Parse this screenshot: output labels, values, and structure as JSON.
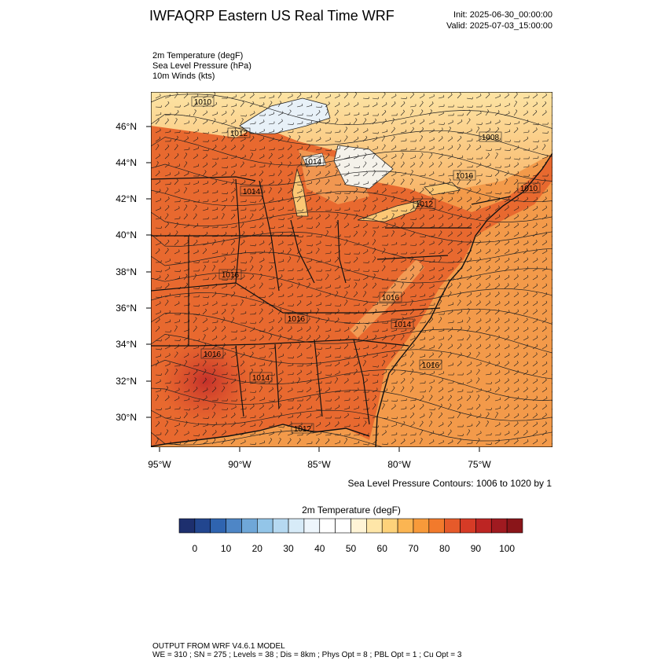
{
  "title": "IWFAQRP Eastern US Real Time WRF",
  "init": "Init: 2025-06-30_00:00:00",
  "valid": "Valid: 2025-07-03_15:00:00",
  "fields": [
    "2m Temperature   (degF)",
    "Sea Level Pressure   (hPa)",
    "10m Winds   (kts)"
  ],
  "map": {
    "lat_labels": [
      "46°N",
      "44°N",
      "42°N",
      "40°N",
      "38°N",
      "36°N",
      "34°N",
      "32°N",
      "30°N"
    ],
    "lon_labels": [
      "95°W",
      "90°W",
      "85°W",
      "80°W",
      "75°W"
    ],
    "pressure_labels": [
      "1010",
      "1012",
      "1008",
      "1016",
      "1014",
      "1014",
      "1010",
      "1012",
      "1016",
      "1016",
      "1016",
      "1014",
      "1016",
      "1014",
      "1016",
      "1012"
    ],
    "colors": {
      "land_hot": "#d9472b",
      "land_warm": "#e8692f",
      "ocean": "#f39a4a",
      "north": "#fcd27a",
      "lake": "#e8f1f8"
    }
  },
  "contour_note": "Sea Level Pressure Contours: 1006 to 1020 by 1",
  "colorbar": {
    "title": "2m Temperature  (degF)",
    "tick_labels": [
      "0",
      "10",
      "20",
      "30",
      "40",
      "50",
      "60",
      "70",
      "80",
      "90",
      "100"
    ],
    "colors": [
      "#1d2f6e",
      "#22468f",
      "#2f64b0",
      "#4e86c6",
      "#6fa7d8",
      "#93c5e8",
      "#b6d9f1",
      "#d7ebf8",
      "#eef6fc",
      "#ffffff",
      "#ffffff",
      "#fff4d6",
      "#fee6a8",
      "#fdd27a",
      "#fbb552",
      "#f89a3a",
      "#f27a2c",
      "#e65a2a",
      "#d63b26",
      "#bd2523",
      "#a01a20",
      "#8a1519"
    ]
  },
  "footer": {
    "line1": "OUTPUT FROM WRF V4.6.1 MODEL",
    "line2": "WE = 310 ; SN = 275 ; Levels = 38 ; Dis = 8km ; Phys Opt = 8 ; PBL Opt = 1 ; Cu Opt = 3"
  }
}
